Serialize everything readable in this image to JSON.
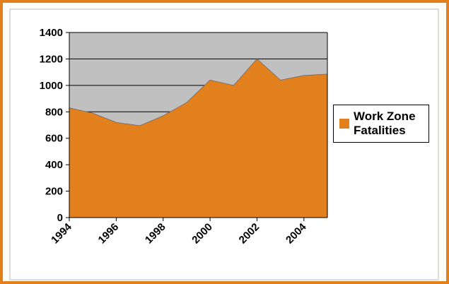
{
  "chart_data": {
    "type": "area",
    "x": [
      1994,
      1995,
      1996,
      1997,
      1998,
      1999,
      2000,
      2001,
      2002,
      2003,
      2004,
      2005
    ],
    "series": [
      {
        "name": "Work Zone Fatalities",
        "color": "#e2801e",
        "values": [
          830,
          790,
          720,
          695,
          770,
          870,
          1040,
          1000,
          1200,
          1040,
          1075,
          1085
        ]
      }
    ],
    "xlim": [
      1994,
      2005
    ],
    "xticks": [
      1994,
      1996,
      1998,
      2000,
      2002,
      2004
    ],
    "ylim": [
      0,
      1400
    ],
    "yticks": [
      0,
      200,
      400,
      600,
      800,
      1000,
      1200,
      1400
    ],
    "grid": true,
    "legend": "right"
  }
}
